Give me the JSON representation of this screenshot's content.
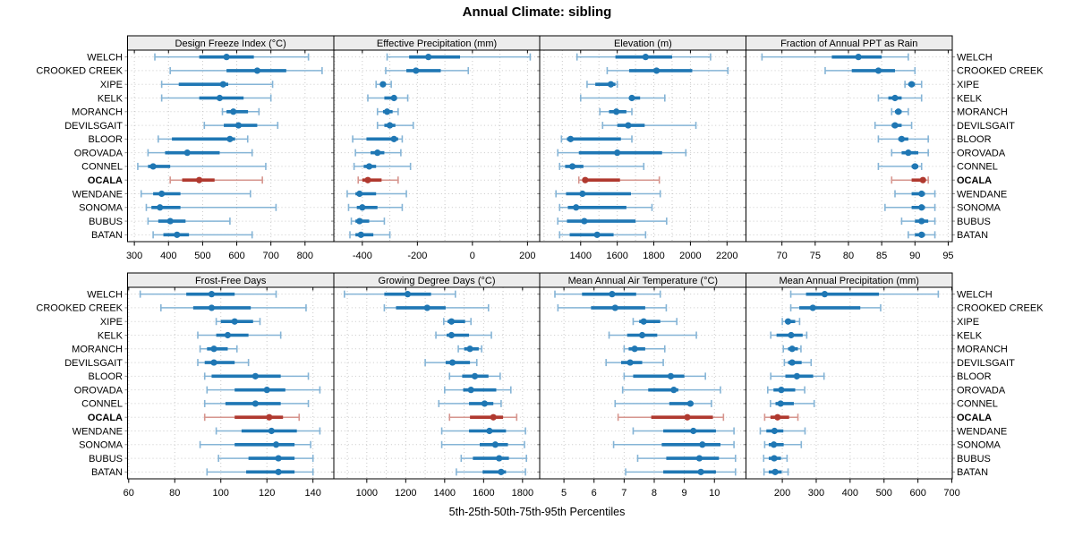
{
  "title": "Annual Climate: sibling",
  "caption": "5th-25th-50th-75th-95th Percentiles",
  "colors": {
    "series": "#1f77b4",
    "series_light": "#85b4d6",
    "highlight": "#b0392f",
    "highlight_light": "#d6958e",
    "grid": "#c9c9c9",
    "strip_bg": "#ececec",
    "panel_border": "#000000",
    "tick": "#000000",
    "row_tick": "#888888"
  },
  "chart_data": {
    "type": "trellis-interval-dotplot",
    "layout": {
      "rows": 2,
      "cols": 4,
      "grid": "dotted",
      "label_columns": [
        "left",
        "right"
      ]
    },
    "percentiles": [
      5,
      25,
      50,
      75,
      95
    ],
    "stations": [
      "WELCH",
      "CROOKED CREEK",
      "XIPE",
      "KELK",
      "MORANCH",
      "DEVILSGAIT",
      "BLOOR",
      "OROVADA",
      "CONNEL",
      "OCALA",
      "WENDANE",
      "SONOMA",
      "BUBUS",
      "BATAN"
    ],
    "highlight_station": "OCALA",
    "panels": [
      {
        "title": "Design Freeze Index (°C)",
        "xlim": [
          280,
          884
        ],
        "ticks": [
          300,
          400,
          500,
          600,
          700,
          800
        ],
        "grid": [
          300,
          400,
          500,
          600,
          700,
          800
        ],
        "values": {
          "WELCH": [
            360,
            490,
            570,
            650,
            810
          ],
          "CROOKED CREEK": [
            405,
            570,
            660,
            745,
            850
          ],
          "XIPE": [
            380,
            430,
            560,
            575,
            705
          ],
          "KELK": [
            380,
            490,
            550,
            620,
            700
          ],
          "MORANCH": [
            558,
            570,
            590,
            633,
            665
          ],
          "DEVILSGAIT": [
            505,
            562,
            605,
            660,
            720
          ],
          "BLOOR": [
            370,
            410,
            580,
            595,
            632
          ],
          "OROVADA": [
            340,
            390,
            455,
            550,
            645
          ],
          "CONNEL": [
            310,
            340,
            355,
            405,
            685
          ],
          "OCALA": [
            405,
            440,
            490,
            535,
            675
          ],
          "WENDANE": [
            320,
            355,
            380,
            435,
            640
          ],
          "SONOMA": [
            335,
            350,
            375,
            435,
            715
          ],
          "BUBUS": [
            340,
            370,
            405,
            450,
            580
          ],
          "BATAN": [
            355,
            385,
            425,
            460,
            645
          ]
        }
      },
      {
        "title": "Effective Precipitation (mm)",
        "xlim": [
          -504,
          245
        ],
        "ticks": [
          -400,
          -200,
          0,
          200
        ],
        "grid": [
          -500,
          -400,
          -300,
          -200,
          -100,
          0,
          100,
          200
        ],
        "values": {
          "WELCH": [
            -310,
            -230,
            -160,
            -45,
            210
          ],
          "CROOKED CREEK": [
            -315,
            -240,
            -205,
            -115,
            -15
          ],
          "XIPE": [
            -350,
            -335,
            -325,
            -315,
            -295
          ],
          "KELK": [
            -380,
            -320,
            -285,
            -275,
            -235
          ],
          "MORANCH": [
            -345,
            -325,
            -310,
            -290,
            -270
          ],
          "DEVILSGAIT": [
            -345,
            -320,
            -300,
            -280,
            -215
          ],
          "BLOOR": [
            -435,
            -385,
            -285,
            -270,
            -255
          ],
          "OROVADA": [
            -425,
            -370,
            -345,
            -320,
            -260
          ],
          "CONNEL": [
            -430,
            -395,
            -375,
            -350,
            -225
          ],
          "OCALA": [
            -415,
            -400,
            -380,
            -330,
            -270
          ],
          "WENDANE": [
            -455,
            -425,
            -410,
            -350,
            -240
          ],
          "SONOMA": [
            -450,
            -420,
            -400,
            -345,
            -255
          ],
          "BUBUS": [
            -440,
            -425,
            -410,
            -375,
            -320
          ],
          "BATAN": [
            -445,
            -425,
            -405,
            -360,
            -300
          ]
        }
      },
      {
        "title": "Elevation (m)",
        "xlim": [
          1177,
          2304
        ],
        "ticks": [
          1400,
          1600,
          1800,
          2000,
          2200
        ],
        "grid": [
          1200,
          1300,
          1400,
          1500,
          1600,
          1700,
          1800,
          1900,
          2000,
          2100,
          2200
        ],
        "values": {
          "WELCH": [
            1380,
            1590,
            1755,
            1900,
            2110
          ],
          "CROOKED CREEK": [
            1545,
            1665,
            1815,
            2010,
            2205
          ],
          "XIPE": [
            1435,
            1480,
            1565,
            1590,
            1600
          ],
          "KELK": [
            1400,
            1665,
            1680,
            1725,
            1860
          ],
          "MORANCH": [
            1505,
            1555,
            1595,
            1650,
            1680
          ],
          "DEVILSGAIT": [
            1520,
            1600,
            1660,
            1750,
            2030
          ],
          "BLOOR": [
            1295,
            1325,
            1345,
            1620,
            1680
          ],
          "OROVADA": [
            1275,
            1390,
            1600,
            1845,
            1975
          ],
          "CONNEL": [
            1285,
            1315,
            1355,
            1415,
            1745
          ],
          "OCALA": [
            1390,
            1410,
            1425,
            1615,
            1830
          ],
          "WENDANE": [
            1265,
            1320,
            1410,
            1675,
            1835
          ],
          "SONOMA": [
            1285,
            1330,
            1375,
            1650,
            1790
          ],
          "BUBUS": [
            1275,
            1325,
            1420,
            1700,
            1870
          ],
          "BATAN": [
            1285,
            1340,
            1490,
            1580,
            1755
          ]
        }
      },
      {
        "title": "Fraction of Annual PPT as Rain",
        "xlim": [
          64.6,
          95.6
        ],
        "ticks": [
          70,
          75,
          80,
          85,
          90,
          95
        ],
        "grid": [
          70,
          75,
          80,
          85,
          90,
          95
        ],
        "values": {
          "WELCH": [
            67,
            77.5,
            81.5,
            85,
            89
          ],
          "CROOKED CREEK": [
            76.5,
            80.5,
            84.5,
            87,
            90
          ],
          "XIPE": [
            88.5,
            89,
            89.5,
            90,
            91
          ],
          "KELK": [
            84.5,
            86,
            87,
            88,
            91
          ],
          "MORANCH": [
            86.5,
            87,
            87.5,
            88,
            89
          ],
          "DEVILSGAIT": [
            84,
            86.5,
            87,
            88,
            89.5
          ],
          "BLOOR": [
            84.5,
            87.5,
            88,
            89,
            92
          ],
          "OROVADA": [
            86.5,
            88,
            89,
            90.5,
            92
          ],
          "CONNEL": [
            84.5,
            89.5,
            90,
            90.5,
            91
          ],
          "OCALA": [
            86.5,
            89.5,
            91.2,
            91.5,
            92
          ],
          "WENDANE": [
            87,
            89.5,
            91,
            91.5,
            93
          ],
          "SONOMA": [
            85.5,
            89.5,
            91,
            91.5,
            93
          ],
          "BUBUS": [
            88,
            90,
            91,
            92,
            93
          ],
          "BATAN": [
            89,
            90,
            91,
            91.5,
            93
          ]
        }
      },
      {
        "title": "Frost-Free Days",
        "xlim": [
          59.5,
          149
        ],
        "ticks": [
          60,
          80,
          100,
          120,
          140
        ],
        "grid": [
          60,
          80,
          100,
          120,
          140
        ],
        "values": {
          "WELCH": [
            65,
            85,
            96,
            106,
            124
          ],
          "CROOKED CREEK": [
            74,
            88,
            96,
            113,
            137
          ],
          "XIPE": [
            98,
            100,
            106,
            114,
            117
          ],
          "KELK": [
            90,
            98,
            103,
            112,
            126
          ],
          "MORANCH": [
            91,
            94,
            97,
            103,
            107
          ],
          "DEVILSGAIT": [
            90,
            93,
            97,
            106,
            112
          ],
          "BLOOR": [
            93,
            96,
            115,
            126,
            138
          ],
          "OROVADA": [
            94,
            106,
            120,
            128,
            143
          ],
          "CONNEL": [
            93,
            102,
            115,
            126,
            138
          ],
          "OCALA": [
            93,
            106,
            121,
            127,
            134
          ],
          "WENDANE": [
            98,
            109,
            122,
            133,
            143
          ],
          "SONOMA": [
            91,
            106,
            124,
            132,
            139
          ],
          "BUBUS": [
            99,
            112,
            125,
            132,
            140
          ],
          "BATAN": [
            94,
            111,
            125,
            132,
            140
          ]
        }
      },
      {
        "title": "Growing Degree Days (°C)",
        "xlim": [
          830,
          1889
        ],
        "ticks": [
          1000,
          1200,
          1400,
          1600,
          1800
        ],
        "grid": [
          900,
          1000,
          1100,
          1200,
          1300,
          1400,
          1500,
          1600,
          1700,
          1800
        ],
        "values": {
          "WELCH": [
            885,
            1090,
            1210,
            1330,
            1455
          ],
          "CROOKED CREEK": [
            1090,
            1150,
            1310,
            1405,
            1625
          ],
          "XIPE": [
            1395,
            1415,
            1435,
            1505,
            1535
          ],
          "KELK": [
            1355,
            1410,
            1435,
            1525,
            1640
          ],
          "MORANCH": [
            1470,
            1500,
            1530,
            1575,
            1590
          ],
          "DEVILSGAIT": [
            1300,
            1405,
            1440,
            1530,
            1565
          ],
          "BLOOR": [
            1425,
            1490,
            1555,
            1625,
            1685
          ],
          "OROVADA": [
            1400,
            1495,
            1535,
            1665,
            1740
          ],
          "CONNEL": [
            1370,
            1525,
            1605,
            1650,
            1690
          ],
          "OCALA": [
            1425,
            1530,
            1650,
            1700,
            1770
          ],
          "WENDANE": [
            1385,
            1525,
            1630,
            1715,
            1815
          ],
          "SONOMA": [
            1385,
            1580,
            1660,
            1725,
            1810
          ],
          "BUBUS": [
            1485,
            1545,
            1680,
            1730,
            1820
          ],
          "BATAN": [
            1460,
            1595,
            1690,
            1715,
            1815
          ]
        }
      },
      {
        "title": "Mean Annual Air Temperature (°C)",
        "xlim": [
          4.2,
          11.05
        ],
        "ticks": [
          5,
          6,
          7,
          8,
          9,
          10
        ],
        "grid": [
          5,
          6,
          7,
          8,
          9,
          10
        ],
        "values": {
          "WELCH": [
            4.7,
            5.6,
            6.6,
            7.4,
            8.2
          ],
          "CROOKED CREEK": [
            4.8,
            5.9,
            6.7,
            7.7,
            8.4
          ],
          "XIPE": [
            7.3,
            7.5,
            7.65,
            8.2,
            8.75
          ],
          "KELK": [
            6.5,
            7.1,
            7.6,
            8.1,
            9.4
          ],
          "MORANCH": [
            7.0,
            7.15,
            7.35,
            7.7,
            8.35
          ],
          "DEVILSGAIT": [
            6.4,
            6.9,
            7.2,
            7.6,
            8.3
          ],
          "BLOOR": [
            7.0,
            7.3,
            8.55,
            9.0,
            9.7
          ],
          "OROVADA": [
            6.95,
            7.8,
            8.65,
            8.8,
            10.2
          ],
          "CONNEL": [
            6.7,
            8.5,
            9.2,
            9.3,
            9.9
          ],
          "OCALA": [
            6.8,
            7.9,
            9.1,
            9.95,
            10.3
          ],
          "WENDANE": [
            7.3,
            8.3,
            9.3,
            10.05,
            10.65
          ],
          "SONOMA": [
            6.65,
            8.25,
            9.6,
            10.2,
            10.65
          ],
          "BUBUS": [
            7.45,
            8.4,
            9.5,
            10.15,
            10.7
          ],
          "BATAN": [
            7.05,
            8.3,
            9.55,
            10.05,
            10.7
          ]
        }
      },
      {
        "title": "Mean Annual Precipitation (mm)",
        "xlim": [
          93,
          701
        ],
        "ticks": [
          200,
          300,
          400,
          500,
          600,
          700
        ],
        "grid": [
          200,
          300,
          400,
          500,
          600,
          700
        ],
        "values": {
          "WELCH": [
            225,
            270,
            325,
            485,
            660
          ],
          "CROOKED CREEK": [
            225,
            250,
            290,
            430,
            490
          ],
          "XIPE": [
            200,
            209,
            217,
            238,
            251
          ],
          "KELK": [
            166,
            183,
            226,
            260,
            272
          ],
          "MORANCH": [
            203,
            217,
            229,
            246,
            255
          ],
          "DEVILSGAIT": [
            206,
            217,
            229,
            257,
            285
          ],
          "BLOOR": [
            166,
            209,
            243,
            291,
            323
          ],
          "OROVADA": [
            157,
            174,
            197,
            238,
            266
          ],
          "CONNEL": [
            165,
            180,
            195,
            234,
            294
          ],
          "OCALA": [
            148,
            165,
            186,
            220,
            246
          ],
          "WENDANE": [
            135,
            153,
            177,
            203,
            267
          ],
          "SONOMA": [
            148,
            160,
            175,
            204,
            256
          ],
          "BUBUS": [
            145,
            160,
            176,
            196,
            214
          ],
          "BATAN": [
            146,
            160,
            179,
            198,
            217
          ]
        }
      }
    ]
  }
}
